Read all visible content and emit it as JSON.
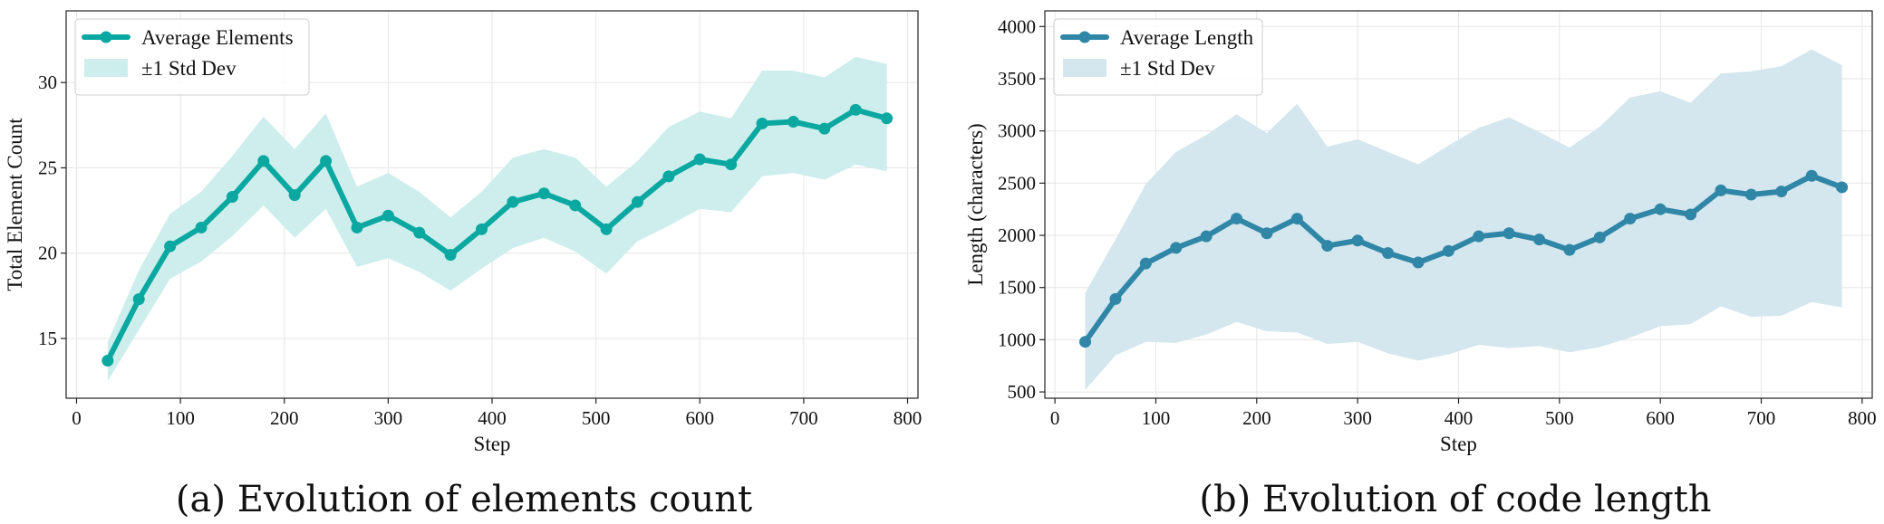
{
  "chart_data": [
    {
      "type": "line",
      "caption": "(a) Evolution of elements count",
      "xlabel": "Step",
      "ylabel": "Total Element Count",
      "xlim": [
        -10,
        810
      ],
      "ylim": [
        11.5,
        34.2
      ],
      "xticks": [
        0,
        100,
        200,
        300,
        400,
        500,
        600,
        700,
        800
      ],
      "yticks": [
        15,
        20,
        25,
        30
      ],
      "grid": true,
      "legend_position": "top-left",
      "colors": {
        "line": "#0aa8a0",
        "band": "#cdeeed"
      },
      "legend": [
        "Average Elements",
        "±1 Std Dev"
      ],
      "x": [
        30,
        60,
        90,
        120,
        150,
        180,
        210,
        240,
        270,
        300,
        330,
        360,
        390,
        420,
        450,
        480,
        510,
        540,
        570,
        600,
        630,
        660,
        690,
        720,
        750,
        780
      ],
      "series": [
        {
          "name": "Average Elements",
          "values": [
            13.7,
            17.3,
            20.4,
            21.5,
            23.3,
            25.4,
            23.4,
            25.4,
            21.5,
            22.2,
            21.2,
            19.9,
            21.4,
            23.0,
            23.5,
            22.8,
            21.4,
            23.0,
            24.5,
            25.5,
            25.2,
            27.6,
            27.7,
            27.3,
            28.4,
            27.9
          ]
        }
      ],
      "band_upper": [
        14.8,
        19.0,
        22.3,
        23.6,
        25.7,
        28.0,
        26.1,
        28.2,
        23.9,
        24.7,
        23.6,
        22.1,
        23.6,
        25.6,
        26.1,
        25.6,
        23.9,
        25.4,
        27.4,
        28.3,
        27.9,
        30.7,
        30.7,
        30.3,
        31.5,
        31.1
      ],
      "band_lower": [
        12.5,
        15.5,
        18.5,
        19.5,
        21.0,
        22.8,
        20.9,
        22.6,
        19.2,
        19.7,
        18.9,
        17.8,
        19.1,
        20.3,
        20.9,
        20.1,
        18.8,
        20.7,
        21.6,
        22.6,
        22.4,
        24.5,
        24.7,
        24.3,
        25.2,
        24.8
      ]
    },
    {
      "type": "line",
      "caption": "(b) Evolution of code length",
      "xlabel": "Step",
      "ylabel": "Length (characters)",
      "xlim": [
        -10,
        810
      ],
      "ylim": [
        440,
        4150
      ],
      "xticks": [
        0,
        100,
        200,
        300,
        400,
        500,
        600,
        700,
        800
      ],
      "yticks": [
        500,
        1000,
        1500,
        2000,
        2500,
        3000,
        3500,
        4000
      ],
      "grid": true,
      "legend_position": "top-left",
      "colors": {
        "line": "#2f86a6",
        "band": "#d4e6ee"
      },
      "legend": [
        "Average Length",
        "±1 Std Dev"
      ],
      "x": [
        30,
        60,
        90,
        120,
        150,
        180,
        210,
        240,
        270,
        300,
        330,
        360,
        390,
        420,
        450,
        480,
        510,
        540,
        570,
        600,
        630,
        660,
        690,
        720,
        750,
        780
      ],
      "series": [
        {
          "name": "Average Length",
          "values": [
            980,
            1390,
            1730,
            1880,
            1990,
            2160,
            2020,
            2160,
            1900,
            1950,
            1830,
            1740,
            1850,
            1990,
            2020,
            1960,
            1860,
            1980,
            2160,
            2250,
            2200,
            2430,
            2390,
            2420,
            2570,
            2460
          ]
        }
      ],
      "band_upper": [
        1450,
        1960,
        2490,
        2800,
        2960,
        3160,
        2980,
        3260,
        2850,
        2920,
        2800,
        2680,
        2860,
        3030,
        3130,
        2990,
        2840,
        3040,
        3320,
        3380,
        3270,
        3550,
        3570,
        3620,
        3780,
        3630
      ],
      "band_lower": [
        520,
        850,
        980,
        970,
        1050,
        1170,
        1080,
        1070,
        960,
        980,
        870,
        800,
        860,
        950,
        920,
        940,
        880,
        930,
        1020,
        1130,
        1150,
        1320,
        1220,
        1230,
        1360,
        1310
      ]
    }
  ]
}
